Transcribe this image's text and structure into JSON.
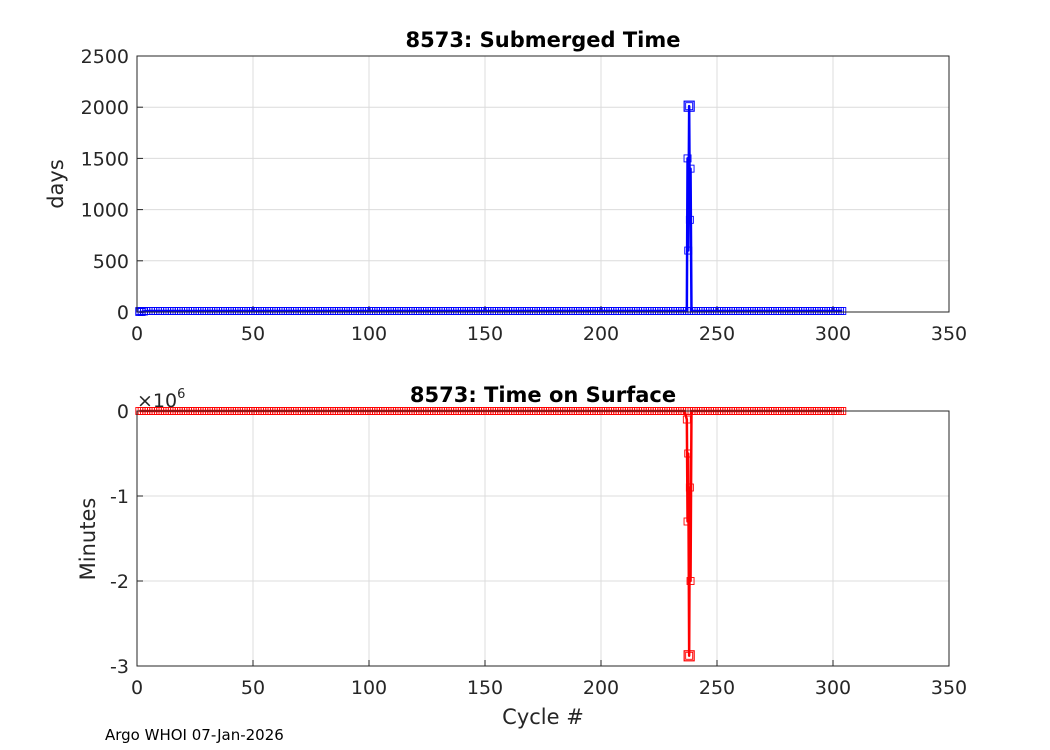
{
  "footer": {
    "text": "Argo WHOI 07-Jan-2026"
  },
  "chart_data": [
    {
      "type": "line",
      "title": "8573: Submerged Time",
      "xlabel": "",
      "ylabel": "days",
      "xlim": [
        0,
        350
      ],
      "ylim": [
        0,
        2500
      ],
      "xticks": [
        "0",
        "50",
        "100",
        "150",
        "200",
        "250",
        "300",
        "350"
      ],
      "yticks": [
        "0",
        "500",
        "1000",
        "1500",
        "2000",
        "2500"
      ],
      "exponent": "",
      "grid": true,
      "marker": "square",
      "color": "#0000ff",
      "x": [
        1,
        2,
        3,
        4,
        5,
        6,
        7,
        8,
        9,
        10,
        20,
        30,
        40,
        50,
        60,
        70,
        80,
        90,
        100,
        110,
        120,
        130,
        140,
        150,
        160,
        170,
        180,
        190,
        200,
        210,
        220,
        230,
        235,
        236,
        237,
        237.3,
        237.6,
        238,
        238.3,
        238.6,
        239,
        240,
        241,
        250,
        260,
        270,
        280,
        290,
        300,
        304
      ],
      "y": [
        0,
        0,
        5,
        10,
        10,
        10,
        10,
        10,
        10,
        10,
        10,
        10,
        10,
        10,
        10,
        10,
        10,
        10,
        10,
        10,
        10,
        10,
        10,
        10,
        10,
        10,
        10,
        10,
        10,
        10,
        10,
        10,
        10,
        10,
        10,
        1500,
        600,
        2010,
        900,
        1400,
        10,
        10,
        10,
        10,
        10,
        10,
        10,
        10,
        10,
        10
      ],
      "peak": {
        "x": 238,
        "y": 2010
      }
    },
    {
      "type": "line",
      "title": "8573: Time on Surface",
      "xlabel": "Cycle #",
      "ylabel": "Minutes",
      "xlim": [
        0,
        350
      ],
      "ylim": [
        -3,
        0
      ],
      "xticks": [
        "0",
        "50",
        "100",
        "150",
        "200",
        "250",
        "300",
        "350"
      ],
      "yticks": [
        "-3",
        "-2",
        "-1",
        "0"
      ],
      "exponent": "×10",
      "exponent_power": "6",
      "grid": true,
      "marker": "square",
      "color": "#ff0000",
      "x": [
        1,
        2,
        3,
        4,
        5,
        10,
        20,
        30,
        40,
        50,
        60,
        70,
        80,
        90,
        100,
        110,
        120,
        130,
        140,
        150,
        160,
        170,
        180,
        190,
        200,
        210,
        220,
        230,
        235,
        236,
        237,
        237.3,
        237.6,
        238,
        238.3,
        238.6,
        239,
        240,
        241,
        250,
        260,
        270,
        280,
        290,
        300,
        304
      ],
      "y": [
        0,
        0,
        0,
        0,
        0,
        0,
        0,
        0,
        0,
        0,
        0,
        0,
        0,
        0,
        0,
        0,
        0,
        0,
        0,
        0,
        0,
        0,
        0,
        0,
        0,
        0,
        0,
        0,
        0,
        0,
        -0.1,
        -1.3,
        -0.5,
        -2.88,
        -0.9,
        -2.0,
        0,
        0,
        0,
        0,
        0,
        0,
        0,
        0,
        0,
        0
      ],
      "peak": {
        "x": 238,
        "y": -2.88
      }
    }
  ]
}
